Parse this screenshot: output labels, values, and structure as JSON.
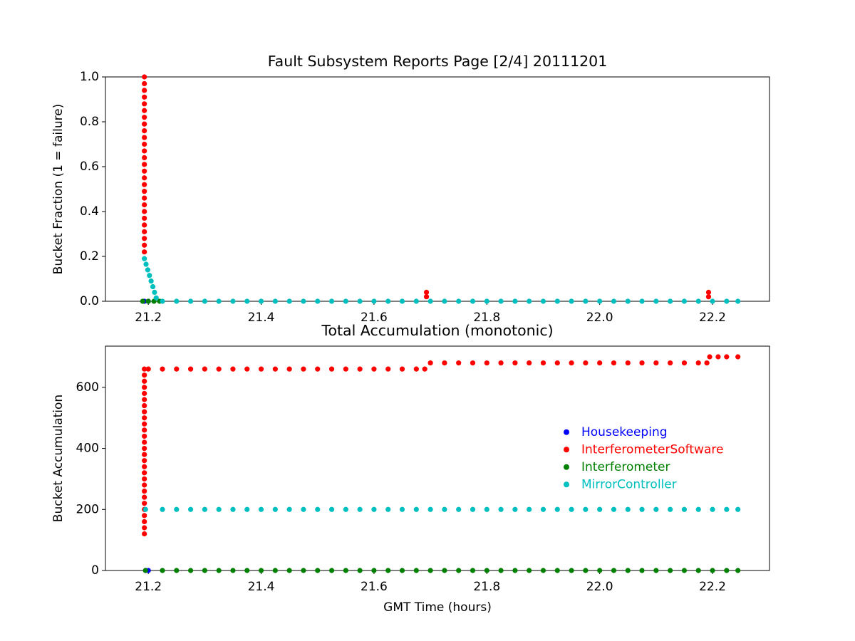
{
  "chart_data": [
    {
      "type": "scatter",
      "title": "Fault Subsystem Reports Page [2/4] 20111201",
      "ylabel": "Bucket Fraction (1 = failure)",
      "xlim": [
        21.124,
        22.301
      ],
      "ylim": [
        0,
        1
      ],
      "xticks": [
        21.2,
        21.4,
        21.6,
        21.8,
        {
          "value": 22,
          "label": "22.0"
        },
        22.2
      ],
      "yticks": [
        {
          "value": 0,
          "label": "0.0"
        },
        0.2,
        0.4,
        0.6,
        0.8,
        {
          "value": 1,
          "label": "1.0"
        }
      ],
      "series": [
        {
          "color": "#0000ff",
          "x": [
            21.193,
            21.2
          ],
          "values": [
            0,
            0
          ]
        },
        {
          "color": "#ff0000",
          "x": [
            21.193,
            21.193,
            21.193,
            21.193,
            21.193,
            21.193,
            21.193,
            21.193,
            21.193,
            21.193,
            21.193,
            21.193,
            21.193,
            21.193,
            21.193,
            21.193,
            21.193,
            21.193,
            21.193,
            21.193,
            21.193,
            21.193,
            21.193,
            21.193,
            21.193,
            21.193,
            21.193,
            21.693,
            21.693,
            22.193,
            22.193
          ],
          "values": [
            0.22,
            0.25,
            0.28,
            0.31,
            0.34,
            0.37,
            0.4,
            0.43,
            0.46,
            0.49,
            0.52,
            0.55,
            0.58,
            0.61,
            0.64,
            0.67,
            0.7,
            0.73,
            0.76,
            0.79,
            0.82,
            0.85,
            0.88,
            0.91,
            0.94,
            0.97,
            1.0,
            0.04,
            0.02,
            0.04,
            0.02
          ]
        },
        {
          "color": "#008000",
          "x": [
            21.19,
            21.2,
            21.21,
            21.22
          ],
          "values": [
            0,
            0,
            0,
            0
          ]
        },
        {
          "color": "#00bfbf",
          "x": [
            21.193,
            21.196,
            21.199,
            21.202,
            21.205,
            21.208,
            21.211,
            21.214,
            21.225,
            21.25,
            21.275,
            21.3,
            21.325,
            21.35,
            21.375,
            21.4,
            21.425,
            21.45,
            21.475,
            21.5,
            21.525,
            21.55,
            21.575,
            21.6,
            21.625,
            21.65,
            21.675,
            21.7,
            21.725,
            21.75,
            21.775,
            21.8,
            21.825,
            21.85,
            21.875,
            21.9,
            21.925,
            21.95,
            21.975,
            22.0,
            22.025,
            22.05,
            22.075,
            22.1,
            22.125,
            22.15,
            22.175,
            22.2,
            22.225,
            22.245
          ],
          "values": [
            0.19,
            0.165,
            0.14,
            0.115,
            0.09,
            0.065,
            0.04,
            0.015,
            0,
            0,
            0,
            0,
            0,
            0,
            0,
            0,
            0,
            0,
            0,
            0,
            0,
            0,
            0,
            0,
            0,
            0,
            0,
            0,
            0,
            0,
            0,
            0,
            0,
            0,
            0,
            0,
            0,
            0,
            0,
            0,
            0,
            0,
            0,
            0,
            0,
            0,
            0,
            0,
            0,
            0
          ]
        }
      ]
    },
    {
      "type": "scatter",
      "title": "Total Accumulation (monotonic)",
      "xlabel": "GMT Time (hours)",
      "ylabel": "Bucket Accumulation",
      "xlim": [
        21.124,
        22.301
      ],
      "ylim": [
        0,
        735
      ],
      "xticks": [
        21.2,
        21.4,
        21.6,
        21.8,
        {
          "value": 22,
          "label": "22.0"
        },
        22.2
      ],
      "yticks": [
        0,
        200,
        400,
        600
      ],
      "legend": "center right",
      "series": [
        {
          "name": "Housekeeping",
          "color": "#0000ff",
          "x": [
            21.195,
            21.2
          ],
          "values": [
            0,
            0
          ]
        },
        {
          "name": "InterferometerSoftware",
          "color": "#ff0000",
          "x": [
            21.193,
            21.193,
            21.193,
            21.193,
            21.193,
            21.193,
            21.193,
            21.193,
            21.193,
            21.193,
            21.193,
            21.193,
            21.193,
            21.193,
            21.193,
            21.193,
            21.193,
            21.193,
            21.193,
            21.193,
            21.193,
            21.193,
            21.193,
            21.193,
            21.193,
            21.193,
            21.193,
            21.193,
            21.2,
            21.225,
            21.25,
            21.275,
            21.3,
            21.325,
            21.35,
            21.375,
            21.4,
            21.425,
            21.45,
            21.475,
            21.5,
            21.525,
            21.55,
            21.575,
            21.6,
            21.625,
            21.65,
            21.675,
            21.69,
            21.7,
            21.725,
            21.75,
            21.775,
            21.8,
            21.825,
            21.85,
            21.875,
            21.9,
            21.925,
            21.95,
            21.975,
            22.0,
            22.025,
            22.05,
            22.075,
            22.1,
            22.125,
            22.15,
            22.175,
            22.19,
            22.195,
            22.21,
            22.225,
            22.245
          ],
          "values": [
            120,
            140,
            160,
            180,
            200,
            220,
            240,
            260,
            280,
            300,
            320,
            340,
            360,
            380,
            400,
            420,
            440,
            460,
            480,
            500,
            520,
            540,
            560,
            580,
            600,
            620,
            640,
            660,
            660,
            660,
            660,
            660,
            660,
            660,
            660,
            660,
            660,
            660,
            660,
            660,
            660,
            660,
            660,
            660,
            660,
            660,
            660,
            660,
            660,
            680,
            680,
            680,
            680,
            680,
            680,
            680,
            680,
            680,
            680,
            680,
            680,
            680,
            680,
            680,
            680,
            680,
            680,
            680,
            680,
            680,
            700,
            700,
            700,
            700
          ]
        },
        {
          "name": "Interferometer",
          "color": "#008000",
          "x": [
            21.195,
            21.225,
            21.25,
            21.275,
            21.3,
            21.325,
            21.35,
            21.375,
            21.4,
            21.425,
            21.45,
            21.475,
            21.5,
            21.525,
            21.55,
            21.575,
            21.6,
            21.625,
            21.65,
            21.675,
            21.7,
            21.725,
            21.75,
            21.775,
            21.8,
            21.825,
            21.85,
            21.875,
            21.9,
            21.925,
            21.95,
            21.975,
            22.0,
            22.025,
            22.05,
            22.075,
            22.1,
            22.125,
            22.15,
            22.175,
            22.2,
            22.225,
            22.245
          ],
          "values": [
            0,
            0,
            0,
            0,
            0,
            0,
            0,
            0,
            0,
            0,
            0,
            0,
            0,
            0,
            0,
            0,
            0,
            0,
            0,
            0,
            0,
            0,
            0,
            0,
            0,
            0,
            0,
            0,
            0,
            0,
            0,
            0,
            0,
            0,
            0,
            0,
            0,
            0,
            0,
            0,
            0,
            0,
            0
          ]
        },
        {
          "name": "MirrorController",
          "color": "#00bfbf",
          "x": [
            21.195,
            21.225,
            21.25,
            21.275,
            21.3,
            21.325,
            21.35,
            21.375,
            21.4,
            21.425,
            21.45,
            21.475,
            21.5,
            21.525,
            21.55,
            21.575,
            21.6,
            21.625,
            21.65,
            21.675,
            21.7,
            21.725,
            21.75,
            21.775,
            21.8,
            21.825,
            21.85,
            21.875,
            21.9,
            21.925,
            21.95,
            21.975,
            22.0,
            22.025,
            22.05,
            22.075,
            22.1,
            22.125,
            22.15,
            22.175,
            22.2,
            22.225,
            22.245
          ],
          "values": [
            200,
            200,
            200,
            200,
            200,
            200,
            200,
            200,
            200,
            200,
            200,
            200,
            200,
            200,
            200,
            200,
            200,
            200,
            200,
            200,
            200,
            200,
            200,
            200,
            200,
            200,
            200,
            200,
            200,
            200,
            200,
            200,
            200,
            200,
            200,
            200,
            200,
            200,
            200,
            200,
            200,
            200,
            200
          ]
        }
      ]
    }
  ]
}
